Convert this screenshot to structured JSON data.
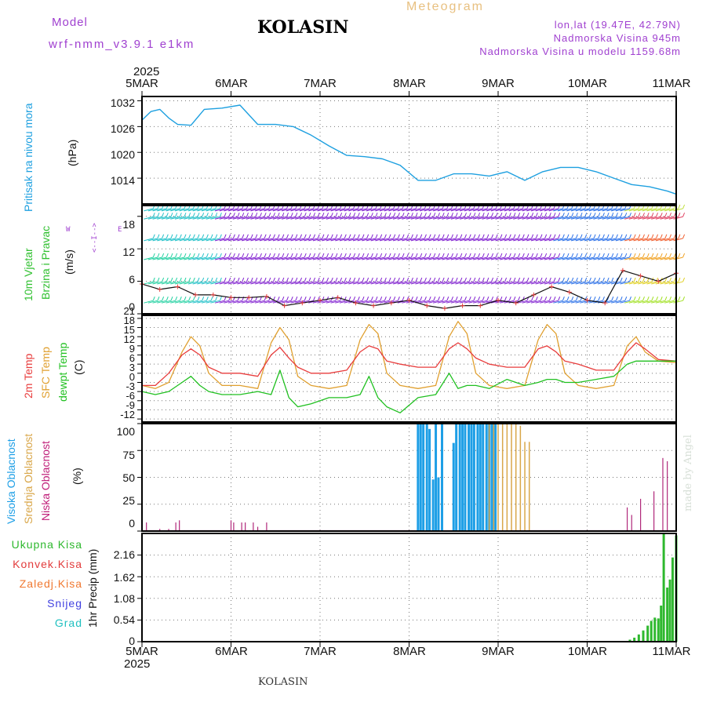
{
  "header": {
    "model_label": "Model",
    "model_name": "wrf-nmm_v3.9.1 e1km",
    "station": "KOLASIN",
    "product": "Meteogram",
    "coords": "lon,lat (19.47E, 42.79N)",
    "elevation": "Nadmorska Visina 945m",
    "model_elevation": "Nadmorska Visina u modelu 1159.68m",
    "footer_station": "KOLASIN",
    "watermark": "made by Angel"
  },
  "colors": {
    "pressure": "#1ea0e0",
    "temp2m": "#e83c3c",
    "sfc": "#e0a030",
    "dewpt": "#20c020",
    "high_cloud": "#1e9fe6",
    "mid_cloud": "#d9a74a",
    "low_cloud": "#b0287a",
    "total_precip": "#2eb82e",
    "conv_precip": "#e23b3b",
    "frz_precip": "#f07830",
    "snow": "#4040e0",
    "hail": "#20c0c0",
    "wind_label": "#30c030",
    "model_text": "#a040d0",
    "product_text": "#e8c080"
  },
  "axes": {
    "year": "2025",
    "dates": [
      "5MAR",
      "6MAR",
      "7MAR",
      "8MAR",
      "9MAR",
      "10MAR",
      "11MAR"
    ]
  },
  "panels": {
    "pressure": {
      "label1": "Pritisak na nivou mora",
      "unit": "(hPa)",
      "ticks": [
        "1014",
        "1020",
        "1026",
        "1032"
      ]
    },
    "wind": {
      "label1": "10m Vjetar",
      "label2": "Brzina i Pravac",
      "unit": "(m/s)",
      "ticks": [
        "0",
        "6",
        "12",
        "18"
      ],
      "compass": {
        "n": "N",
        "s": "S",
        "e": "E",
        "w": "W",
        "top": "<--I-->",
        "bot": "<--I-->"
      }
    },
    "temp": {
      "label1": "2m Temp",
      "label2": "SFC Temp",
      "label3": "dewpt Temp",
      "unit": "(C)",
      "ticks": [
        "-12",
        "-9",
        "-6",
        "-3",
        "0",
        "3",
        "6",
        "9",
        "12",
        "15",
        "18",
        "21"
      ]
    },
    "cloud": {
      "label1": "Visoka Oblacnost",
      "label2": "Srednja Oblacnost",
      "label3": "Niska Oblacnost",
      "unit": "(%)",
      "ticks": [
        "0",
        "25",
        "50",
        "75",
        "100"
      ]
    },
    "precip": {
      "legend": [
        "Ukupna Kisa",
        "Konvek.Kisa",
        "Zaledj.Kisa",
        "Snijeg",
        "Grad"
      ],
      "unit": "1hr Precip (mm)",
      "ticks": [
        "0",
        "0.54",
        "1.08",
        "1.62",
        "2.16"
      ]
    }
  },
  "chart_data": [
    {
      "type": "line",
      "title": "Pritisak na nivou mora",
      "ylabel": "(hPa)",
      "ylim": [
        1008,
        1033
      ],
      "x_start": "5MAR",
      "x_end": "11MAR",
      "x_units": "day",
      "x": [
        0,
        0.1,
        0.2,
        0.3,
        0.4,
        0.55,
        0.7,
        0.9,
        1.1,
        1.3,
        1.5,
        1.7,
        1.9,
        2.1,
        2.3,
        2.5,
        2.7,
        2.9,
        3.1,
        3.3,
        3.5,
        3.7,
        3.9,
        4.1,
        4.3,
        4.5,
        4.7,
        4.9,
        5.1,
        5.3,
        5.5,
        5.7,
        5.9,
        6.0
      ],
      "series": [
        {
          "values": [
            1027.5,
            1029.5,
            1030,
            1028,
            1026.5,
            1026.3,
            1030,
            1030.3,
            1031,
            1026.5,
            1026.5,
            1026,
            1024,
            1021.5,
            1019.3,
            1019,
            1018.5,
            1017,
            1013.5,
            1013.5,
            1015,
            1015,
            1014.5,
            1015.5,
            1013.5,
            1015.5,
            1016.5,
            1016.5,
            1015.5,
            1014,
            1012.5,
            1012,
            1011,
            1010.3
          ]
        }
      ]
    },
    {
      "type": "line",
      "title": "10m Vjetar Brzina i Pravac",
      "ylabel": "(m/s)",
      "ylim": [
        0,
        20
      ],
      "x_start": "5MAR",
      "x_end": "11MAR",
      "x_units": "day",
      "x": [
        0,
        0.2,
        0.4,
        0.6,
        0.8,
        1.0,
        1.2,
        1.4,
        1.6,
        1.8,
        2.0,
        2.2,
        2.4,
        2.6,
        2.8,
        3.0,
        3.2,
        3.4,
        3.6,
        3.8,
        4.0,
        4.2,
        4.4,
        4.6,
        4.8,
        5.0,
        5.2,
        5.4,
        5.6,
        5.8,
        6.0
      ],
      "series": [
        {
          "name": "speed",
          "values": [
            5.5,
            4.5,
            5,
            3.5,
            3.5,
            3,
            3,
            3.2,
            1.5,
            2,
            2.5,
            3,
            2,
            1.5,
            2,
            2.5,
            1.5,
            1,
            1.5,
            1.5,
            2.5,
            2,
            3.5,
            5,
            4,
            2.5,
            2,
            8,
            7,
            6,
            7.5
          ]
        }
      ]
    },
    {
      "type": "line",
      "title": "Temp",
      "ylabel": "(C)",
      "ylim": [
        -13,
        22
      ],
      "x_start": "5MAR",
      "x_end": "11MAR",
      "x_units": "day",
      "x": [
        0,
        0.15,
        0.3,
        0.45,
        0.55,
        0.65,
        0.75,
        0.9,
        1.1,
        1.3,
        1.45,
        1.55,
        1.65,
        1.75,
        1.9,
        2.1,
        2.3,
        2.45,
        2.55,
        2.65,
        2.75,
        2.9,
        3.1,
        3.3,
        3.45,
        3.55,
        3.65,
        3.75,
        3.9,
        4.1,
        4.3,
        4.45,
        4.55,
        4.65,
        4.75,
        4.9,
        5.1,
        5.3,
        5.45,
        5.55,
        5.65,
        5.8,
        6.0
      ],
      "series": [
        {
          "name": "2m Temp",
          "values": [
            -1,
            -1,
            3,
            9,
            11,
            9,
            5,
            3,
            3,
            2,
            9,
            11.5,
            8,
            5,
            3,
            3,
            4,
            10,
            12,
            11,
            7,
            6,
            5,
            5,
            11,
            13,
            11,
            8,
            6,
            5,
            5,
            11,
            12,
            10,
            7,
            6,
            4,
            4,
            10,
            13,
            11,
            7.5,
            7
          ]
        },
        {
          "name": "SFC Temp",
          "values": [
            -1,
            -2,
            0,
            10,
            15,
            12,
            3,
            -1,
            -1,
            -2,
            13,
            18,
            14,
            2,
            -1,
            -2,
            -1,
            14,
            19,
            16,
            3,
            -1,
            -2,
            -1,
            15,
            20,
            16,
            3,
            -1,
            -2,
            -1,
            14,
            19,
            16,
            3,
            -1,
            -2,
            -1,
            12,
            15,
            10,
            7,
            6.5
          ]
        },
        {
          "name": "dewpt Temp",
          "values": [
            -3,
            -4,
            -3,
            0,
            2,
            -1,
            -3,
            -4,
            -4,
            -3,
            -4,
            4,
            -5,
            -8,
            -7,
            -5,
            -5,
            -4,
            2,
            -5,
            -8,
            -10,
            -5,
            -4,
            3,
            -2,
            -1,
            -1,
            -2,
            1,
            -1,
            0,
            1,
            1,
            0,
            0,
            1,
            2,
            6,
            7,
            7,
            7,
            7
          ]
        }
      ]
    },
    {
      "type": "bar",
      "title": "Oblacnost",
      "ylabel": "(%)",
      "ylim": [
        0,
        100
      ],
      "x_start": "5MAR",
      "x_end": "11MAR",
      "x_units": "day",
      "series": [
        {
          "name": "Visoka Oblacnost",
          "x": [
            3.1,
            3.13,
            3.16,
            3.2,
            3.23,
            3.27,
            3.3,
            3.33,
            3.37,
            3.5,
            3.53,
            3.57,
            3.6,
            3.63,
            3.67,
            3.7,
            3.73,
            3.77,
            3.8,
            3.83,
            3.87,
            3.9,
            3.93,
            3.97
          ],
          "values": [
            100,
            100,
            100,
            100,
            95,
            48,
            100,
            50,
            100,
            82,
            100,
            100,
            100,
            100,
            100,
            100,
            100,
            100,
            100,
            100,
            100,
            100,
            100,
            100
          ]
        },
        {
          "name": "Srednja Oblacnost",
          "x": [
            3.9,
            3.95,
            4.0,
            4.05,
            4.1,
            4.15,
            4.2,
            4.25,
            4.3,
            4.35
          ],
          "values": [
            100,
            100,
            100,
            100,
            100,
            100,
            100,
            98,
            83,
            83
          ]
        },
        {
          "name": "Niska Oblacnost",
          "x": [
            0.05,
            0.2,
            0.3,
            0.38,
            0.42,
            1.0,
            1.03,
            1.12,
            1.16,
            1.25,
            1.3,
            1.4,
            5.45,
            5.5,
            5.6,
            5.75,
            5.85,
            5.9
          ],
          "values": [
            8,
            2,
            2,
            8,
            10,
            10,
            8,
            8,
            8,
            8,
            4,
            8,
            22,
            15,
            30,
            37,
            68,
            65
          ]
        }
      ]
    },
    {
      "type": "bar",
      "title": "1hr Precip",
      "ylabel": "(mm)",
      "ylim": [
        0,
        2.7
      ],
      "x_start": "5MAR",
      "x_end": "11MAR",
      "x_units": "day",
      "series": [
        {
          "name": "Ukupna Kisa",
          "x": [
            5.48,
            5.53,
            5.58,
            5.63,
            5.68,
            5.72,
            5.76,
            5.8,
            5.83,
            5.86,
            5.9,
            5.93,
            5.96,
            6.0
          ],
          "values": [
            0.05,
            0.1,
            0.18,
            0.28,
            0.4,
            0.52,
            0.6,
            0.58,
            0.9,
            2.7,
            1.35,
            1.55,
            2.1,
            2.65
          ]
        }
      ]
    }
  ]
}
